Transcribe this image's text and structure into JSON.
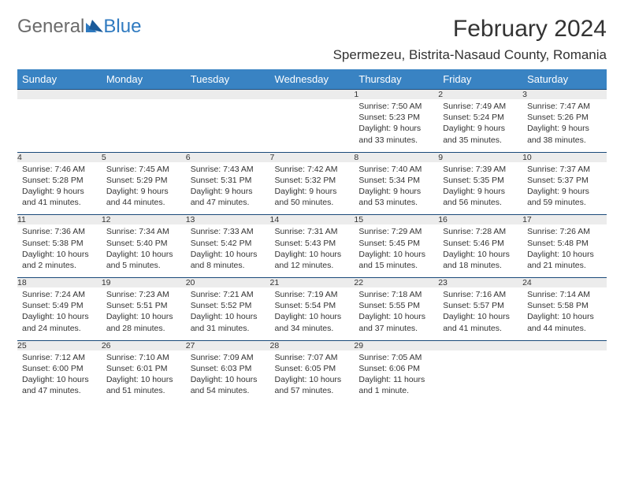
{
  "brand": {
    "part1": "General",
    "part2": "Blue"
  },
  "title": "February 2024",
  "location": "Spermezeu, Bistrita-Nasaud County, Romania",
  "colors": {
    "header_bg": "#3983c3",
    "header_text": "#ffffff",
    "daynum_bg": "#ececec",
    "rule": "#1a4a7a",
    "text": "#333333",
    "logo_gray": "#6b6b6b",
    "logo_blue": "#2f7ac0"
  },
  "weekdays": [
    "Sunday",
    "Monday",
    "Tuesday",
    "Wednesday",
    "Thursday",
    "Friday",
    "Saturday"
  ],
  "weeks": [
    [
      null,
      null,
      null,
      null,
      {
        "n": "1",
        "sr": "Sunrise: 7:50 AM",
        "ss": "Sunset: 5:23 PM",
        "d1": "Daylight: 9 hours",
        "d2": "and 33 minutes."
      },
      {
        "n": "2",
        "sr": "Sunrise: 7:49 AM",
        "ss": "Sunset: 5:24 PM",
        "d1": "Daylight: 9 hours",
        "d2": "and 35 minutes."
      },
      {
        "n": "3",
        "sr": "Sunrise: 7:47 AM",
        "ss": "Sunset: 5:26 PM",
        "d1": "Daylight: 9 hours",
        "d2": "and 38 minutes."
      }
    ],
    [
      {
        "n": "4",
        "sr": "Sunrise: 7:46 AM",
        "ss": "Sunset: 5:28 PM",
        "d1": "Daylight: 9 hours",
        "d2": "and 41 minutes."
      },
      {
        "n": "5",
        "sr": "Sunrise: 7:45 AM",
        "ss": "Sunset: 5:29 PM",
        "d1": "Daylight: 9 hours",
        "d2": "and 44 minutes."
      },
      {
        "n": "6",
        "sr": "Sunrise: 7:43 AM",
        "ss": "Sunset: 5:31 PM",
        "d1": "Daylight: 9 hours",
        "d2": "and 47 minutes."
      },
      {
        "n": "7",
        "sr": "Sunrise: 7:42 AM",
        "ss": "Sunset: 5:32 PM",
        "d1": "Daylight: 9 hours",
        "d2": "and 50 minutes."
      },
      {
        "n": "8",
        "sr": "Sunrise: 7:40 AM",
        "ss": "Sunset: 5:34 PM",
        "d1": "Daylight: 9 hours",
        "d2": "and 53 minutes."
      },
      {
        "n": "9",
        "sr": "Sunrise: 7:39 AM",
        "ss": "Sunset: 5:35 PM",
        "d1": "Daylight: 9 hours",
        "d2": "and 56 minutes."
      },
      {
        "n": "10",
        "sr": "Sunrise: 7:37 AM",
        "ss": "Sunset: 5:37 PM",
        "d1": "Daylight: 9 hours",
        "d2": "and 59 minutes."
      }
    ],
    [
      {
        "n": "11",
        "sr": "Sunrise: 7:36 AM",
        "ss": "Sunset: 5:38 PM",
        "d1": "Daylight: 10 hours",
        "d2": "and 2 minutes."
      },
      {
        "n": "12",
        "sr": "Sunrise: 7:34 AM",
        "ss": "Sunset: 5:40 PM",
        "d1": "Daylight: 10 hours",
        "d2": "and 5 minutes."
      },
      {
        "n": "13",
        "sr": "Sunrise: 7:33 AM",
        "ss": "Sunset: 5:42 PM",
        "d1": "Daylight: 10 hours",
        "d2": "and 8 minutes."
      },
      {
        "n": "14",
        "sr": "Sunrise: 7:31 AM",
        "ss": "Sunset: 5:43 PM",
        "d1": "Daylight: 10 hours",
        "d2": "and 12 minutes."
      },
      {
        "n": "15",
        "sr": "Sunrise: 7:29 AM",
        "ss": "Sunset: 5:45 PM",
        "d1": "Daylight: 10 hours",
        "d2": "and 15 minutes."
      },
      {
        "n": "16",
        "sr": "Sunrise: 7:28 AM",
        "ss": "Sunset: 5:46 PM",
        "d1": "Daylight: 10 hours",
        "d2": "and 18 minutes."
      },
      {
        "n": "17",
        "sr": "Sunrise: 7:26 AM",
        "ss": "Sunset: 5:48 PM",
        "d1": "Daylight: 10 hours",
        "d2": "and 21 minutes."
      }
    ],
    [
      {
        "n": "18",
        "sr": "Sunrise: 7:24 AM",
        "ss": "Sunset: 5:49 PM",
        "d1": "Daylight: 10 hours",
        "d2": "and 24 minutes."
      },
      {
        "n": "19",
        "sr": "Sunrise: 7:23 AM",
        "ss": "Sunset: 5:51 PM",
        "d1": "Daylight: 10 hours",
        "d2": "and 28 minutes."
      },
      {
        "n": "20",
        "sr": "Sunrise: 7:21 AM",
        "ss": "Sunset: 5:52 PM",
        "d1": "Daylight: 10 hours",
        "d2": "and 31 minutes."
      },
      {
        "n": "21",
        "sr": "Sunrise: 7:19 AM",
        "ss": "Sunset: 5:54 PM",
        "d1": "Daylight: 10 hours",
        "d2": "and 34 minutes."
      },
      {
        "n": "22",
        "sr": "Sunrise: 7:18 AM",
        "ss": "Sunset: 5:55 PM",
        "d1": "Daylight: 10 hours",
        "d2": "and 37 minutes."
      },
      {
        "n": "23",
        "sr": "Sunrise: 7:16 AM",
        "ss": "Sunset: 5:57 PM",
        "d1": "Daylight: 10 hours",
        "d2": "and 41 minutes."
      },
      {
        "n": "24",
        "sr": "Sunrise: 7:14 AM",
        "ss": "Sunset: 5:58 PM",
        "d1": "Daylight: 10 hours",
        "d2": "and 44 minutes."
      }
    ],
    [
      {
        "n": "25",
        "sr": "Sunrise: 7:12 AM",
        "ss": "Sunset: 6:00 PM",
        "d1": "Daylight: 10 hours",
        "d2": "and 47 minutes."
      },
      {
        "n": "26",
        "sr": "Sunrise: 7:10 AM",
        "ss": "Sunset: 6:01 PM",
        "d1": "Daylight: 10 hours",
        "d2": "and 51 minutes."
      },
      {
        "n": "27",
        "sr": "Sunrise: 7:09 AM",
        "ss": "Sunset: 6:03 PM",
        "d1": "Daylight: 10 hours",
        "d2": "and 54 minutes."
      },
      {
        "n": "28",
        "sr": "Sunrise: 7:07 AM",
        "ss": "Sunset: 6:05 PM",
        "d1": "Daylight: 10 hours",
        "d2": "and 57 minutes."
      },
      {
        "n": "29",
        "sr": "Sunrise: 7:05 AM",
        "ss": "Sunset: 6:06 PM",
        "d1": "Daylight: 11 hours",
        "d2": "and 1 minute."
      },
      null,
      null
    ]
  ]
}
